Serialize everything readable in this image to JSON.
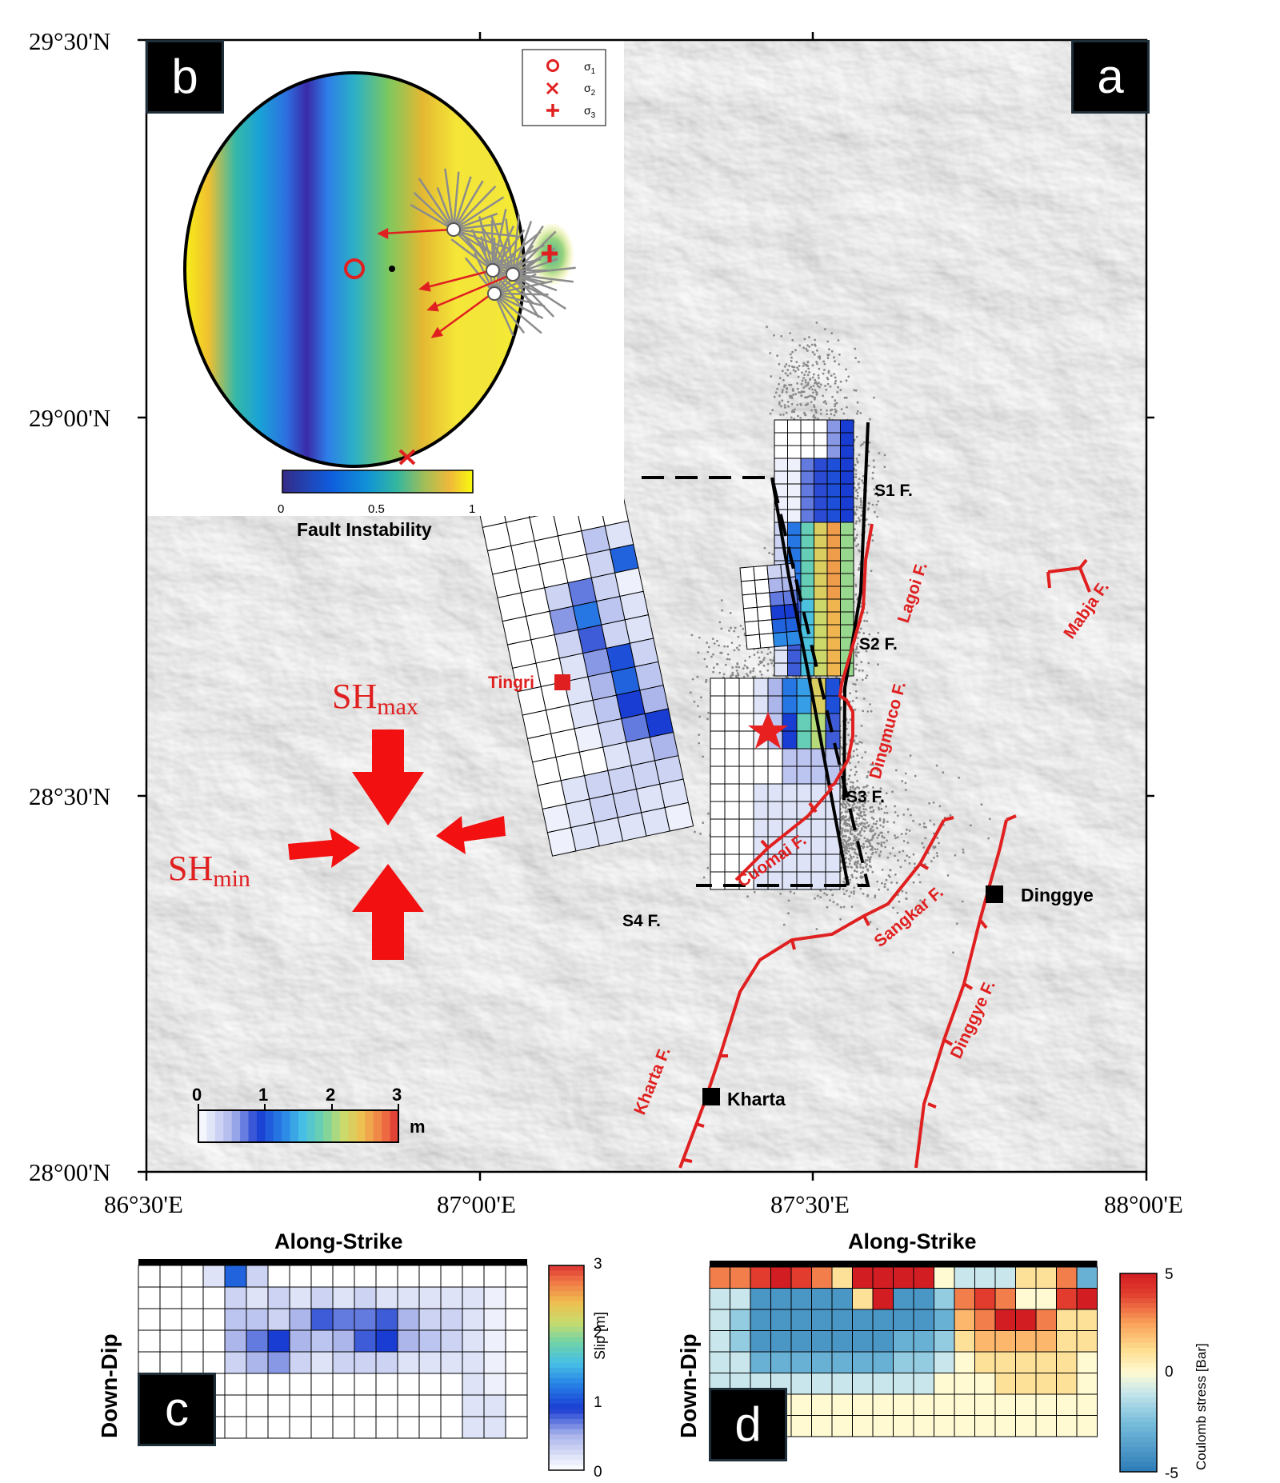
{
  "panels": {
    "a": "a",
    "b": "b",
    "c": "c",
    "d": "d"
  },
  "map": {
    "lat_labels": [
      "29°30'N",
      "29°00'N",
      "28°30'N",
      "28°00'N"
    ],
    "lon_labels": [
      "86°30'E",
      "87°00'E",
      "87°30'E",
      "88°00'E"
    ],
    "faults": {
      "s1": "S1 F.",
      "s2": "S2 F.",
      "s3": "S3 F.",
      "s4": "S4 F.",
      "lagoi": "Lagoi F.",
      "mabja": "Mabja F.",
      "dingmuco": "Dingmuco F.",
      "cuomai": "Cuomai F.",
      "sangkar": "Sangkar F.",
      "dinggye": "Dinggye F.",
      "kharta": "Kharta F."
    },
    "towns": {
      "tingri": "Tingri",
      "dinggye": "Dinggye",
      "kharta": "Kharta"
    },
    "stress": {
      "shmax": "SH",
      "shmax_sub": "max",
      "shmin": "SH",
      "shmin_sub": "min"
    },
    "slip_colorbar": {
      "ticks": [
        "0",
        "1",
        "2",
        "3"
      ],
      "unit": "m"
    },
    "colors": {
      "fault": "#e02020",
      "seismicity": "#8a8a8a",
      "star": "#e82020"
    }
  },
  "stereonet": {
    "legend": [
      {
        "symbol": "○",
        "label": "σ",
        "sub": "1"
      },
      {
        "symbol": "×",
        "label": "σ",
        "sub": "2"
      },
      {
        "symbol": "+",
        "label": "σ",
        "sub": "3"
      }
    ],
    "colorbar": {
      "ticks": [
        "0",
        "0.5",
        "1"
      ],
      "label": "Fault Instability"
    }
  },
  "panel_c": {
    "xlabel": "Along-Strike",
    "ylabel": "Down-Dip",
    "colorbar": {
      "ticks": [
        "3",
        "2",
        "1",
        "0"
      ],
      "label": "Slip [m]"
    }
  },
  "panel_d": {
    "xlabel": "Along-Strike",
    "ylabel": "Down-Dip",
    "colorbar": {
      "ticks": [
        "5",
        "0",
        "-5"
      ],
      "label": "Coulomb stress [Bar]"
    }
  },
  "chart_data": [
    {
      "type": "heatmap",
      "title": "",
      "xlabel": "Along-Strike",
      "ylabel": "Down-Dip",
      "colorbar_label": "Slip [m]",
      "range": [
        0,
        3
      ],
      "z": [
        [
          0,
          0,
          0,
          0.2,
          1.1,
          0.3,
          0,
          0,
          0,
          0,
          0,
          0,
          0,
          0,
          0,
          0,
          0,
          0
        ],
        [
          0,
          0,
          0,
          0,
          0.3,
          0.2,
          0.3,
          0.2,
          0.3,
          0.2,
          0.3,
          0.2,
          0.2,
          0.2,
          0.2,
          0.2,
          0.1,
          0
        ],
        [
          0,
          0,
          0,
          0,
          0.4,
          0.4,
          0.3,
          0.5,
          0.8,
          0.7,
          0.7,
          0.8,
          0.5,
          0.3,
          0.3,
          0.2,
          0.1,
          0
        ],
        [
          0,
          0,
          0,
          0,
          0.5,
          0.7,
          0.9,
          0.5,
          0.4,
          0.5,
          0.8,
          0.9,
          0.5,
          0.4,
          0.3,
          0.2,
          0.1,
          0
        ],
        [
          0,
          0,
          0,
          0,
          0.3,
          0.5,
          0.6,
          0.3,
          0.2,
          0.3,
          0.3,
          0.3,
          0.2,
          0.2,
          0.2,
          0.2,
          0.1,
          0
        ],
        [
          0,
          0,
          0,
          0,
          0,
          0,
          0,
          0,
          0,
          0,
          0,
          0,
          0,
          0,
          0,
          0.2,
          0.1,
          0
        ],
        [
          0,
          0,
          0,
          0,
          0,
          0,
          0,
          0,
          0,
          0,
          0,
          0,
          0,
          0,
          0,
          0.2,
          0.2,
          0
        ],
        [
          0,
          0,
          0,
          0,
          0,
          0,
          0,
          0,
          0,
          0,
          0,
          0,
          0,
          0,
          0,
          0.2,
          0.2,
          0
        ]
      ]
    },
    {
      "type": "heatmap",
      "title": "",
      "xlabel": "Along-Strike",
      "ylabel": "Down-Dip",
      "colorbar_label": "Coulomb stress [Bar]",
      "range": [
        -5,
        5
      ],
      "z": [
        [
          3,
          3,
          4,
          5,
          4,
          3,
          1,
          5,
          5,
          5,
          5,
          0,
          -1,
          -1,
          -1,
          1,
          1,
          3,
          -3
        ],
        [
          -1,
          -1,
          -4,
          -4,
          -4,
          -4,
          -4,
          1,
          5,
          -4,
          -4,
          -2,
          3,
          4,
          3,
          0,
          0,
          4,
          5
        ],
        [
          -1,
          -2,
          -4,
          -4,
          -4,
          -4,
          -4,
          -4,
          -4,
          -4,
          -4,
          -3,
          2,
          3,
          5,
          5,
          3,
          1,
          1
        ],
        [
          -1,
          -2,
          -4,
          -4,
          -4,
          -4,
          -4,
          -4,
          -4,
          -3,
          -3,
          -2,
          1,
          2,
          2,
          2,
          2,
          1,
          1
        ],
        [
          -1,
          -1,
          -3,
          -3,
          -3,
          -3,
          -3,
          -3,
          -3,
          -2,
          -2,
          -1,
          0,
          1,
          1,
          1,
          1,
          1,
          0
        ],
        [
          -1,
          -1,
          -1,
          -1,
          -1,
          -1,
          -1,
          -1,
          -1,
          -1,
          -1,
          0,
          0,
          0,
          1,
          1,
          1,
          1,
          0
        ],
        [
          -1,
          -1,
          0,
          0,
          0,
          0,
          0,
          0,
          0,
          0,
          0,
          0,
          0,
          0,
          0,
          0,
          0,
          0,
          0
        ],
        [
          0,
          0,
          0,
          0,
          0,
          0,
          0,
          0,
          0,
          0,
          0,
          0,
          0,
          0,
          0,
          0,
          0,
          0,
          0
        ]
      ]
    }
  ]
}
